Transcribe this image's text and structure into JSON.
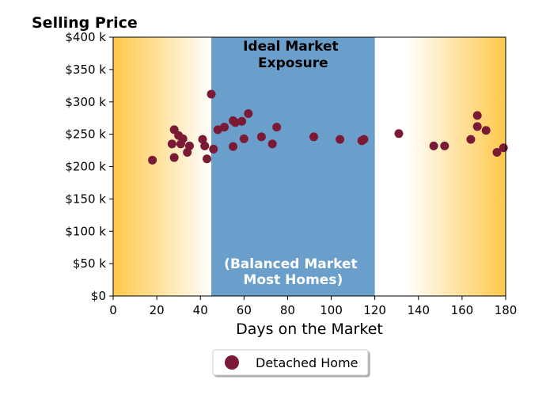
{
  "chart_data": {
    "type": "scatter",
    "title": "Selling Price",
    "xlabel": "Days on the Market",
    "ylabel": "",
    "xlim": [
      0,
      180
    ],
    "ylim": [
      0,
      400000
    ],
    "xticks": [
      0,
      20,
      40,
      60,
      80,
      100,
      120,
      140,
      160,
      180
    ],
    "yticks": [
      0,
      50000,
      100000,
      150000,
      200000,
      250000,
      300000,
      350000,
      400000
    ],
    "ytick_labels": [
      "$0",
      "$50 k",
      "$100 k",
      "$150 k",
      "$200 k",
      "$250 k",
      "$300 k",
      "$350 k",
      "$400 k"
    ],
    "band": {
      "x_range": [
        45,
        120
      ],
      "color": "#6a9fcc",
      "label_top": [
        "Ideal Market",
        "Exposure"
      ],
      "label_bottom": [
        "(Balanced Market",
        "Most Homes)"
      ]
    },
    "edge_gradient_color": "#ffc84a",
    "series": [
      {
        "name": "Detached Home",
        "color": "#7b1a35",
        "points": [
          [
            18,
            210000
          ],
          [
            27,
            235000
          ],
          [
            28,
            257000
          ],
          [
            28,
            214000
          ],
          [
            30,
            248000
          ],
          [
            31,
            235000
          ],
          [
            32,
            243000
          ],
          [
            34,
            222000
          ],
          [
            35,
            232000
          ],
          [
            41,
            242000
          ],
          [
            42,
            232000
          ],
          [
            43,
            212000
          ],
          [
            45,
            312000
          ],
          [
            46,
            227000
          ],
          [
            48,
            257000
          ],
          [
            51,
            261000
          ],
          [
            55,
            231000
          ],
          [
            55,
            271000
          ],
          [
            56,
            268000
          ],
          [
            59,
            270000
          ],
          [
            60,
            243000
          ],
          [
            62,
            282000
          ],
          [
            68,
            246000
          ],
          [
            73,
            235000
          ],
          [
            75,
            261000
          ],
          [
            92,
            246000
          ],
          [
            104,
            242000
          ],
          [
            114,
            240000
          ],
          [
            115,
            242000
          ],
          [
            131,
            251000
          ],
          [
            147,
            232000
          ],
          [
            152,
            232000
          ],
          [
            164,
            242000
          ],
          [
            167,
            279000
          ],
          [
            167,
            262000
          ],
          [
            171,
            256000
          ],
          [
            176,
            222000
          ],
          [
            179,
            229000
          ]
        ]
      }
    ],
    "legend": {
      "position": "bottom-center"
    }
  }
}
